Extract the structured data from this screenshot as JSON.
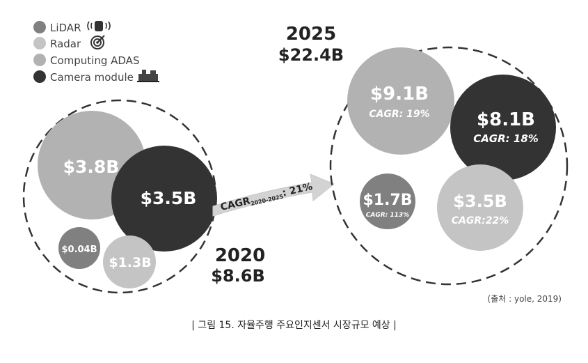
{
  "chart_data": {
    "type": "bubble",
    "legend": [
      {
        "label": "LiDAR",
        "color": "#808080",
        "icon": "lidar-icon"
      },
      {
        "label": "Radar",
        "color": "#c4c4c4",
        "icon": "radar-icon"
      },
      {
        "label": "Computing ADAS",
        "color": "#b2b2b2",
        "icon": ""
      },
      {
        "label": "Camera module",
        "color": "#333333",
        "icon": "camera-icon"
      }
    ],
    "groups": [
      {
        "year": "2020",
        "total": "$8.6B",
        "bubbles": [
          {
            "series": "Computing ADAS",
            "label": "$3.8B",
            "value": 3.8
          },
          {
            "series": "Camera module",
            "label": "$3.5B",
            "value": 3.5
          },
          {
            "series": "LiDAR",
            "label": "$0.04B",
            "value": 0.04
          },
          {
            "series": "Radar",
            "label": "$1.3B",
            "value": 1.3
          }
        ]
      },
      {
        "year": "2025",
        "total": "$22.4B",
        "bubbles": [
          {
            "series": "Computing ADAS",
            "label": "$9.1B",
            "value": 9.1,
            "cagr": "CAGR: 19%"
          },
          {
            "series": "Camera module",
            "label": "$8.1B",
            "value": 8.1,
            "cagr": "CAGR: 18%"
          },
          {
            "series": "LiDAR",
            "label": "$1.7B",
            "value": 1.7,
            "cagr": "CAGR: 113%"
          },
          {
            "series": "Radar",
            "label": "$3.5B",
            "value": 3.5,
            "cagr": "CAGR:22%"
          }
        ]
      }
    ],
    "arrow_label": {
      "prefix": "CAGR",
      "sub": "2020-2025",
      "suffix": ": 21%"
    }
  },
  "source": "(출처 : yole, 2019)",
  "caption": "| 그림 15. 자율주행 주요인지센서 시장규모 예상 |"
}
